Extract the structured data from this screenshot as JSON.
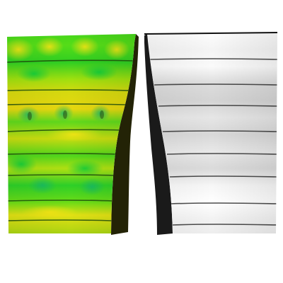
{
  "scene": {
    "background": "#ffffff",
    "panels": [
      {
        "name": "colored-surface-render",
        "colormap": [
          "#11cc22",
          "#44dd11",
          "#99e011",
          "#d8e010",
          "#f0e414",
          "#c8c800"
        ],
        "shadow_color": "#232306",
        "line_color": "#2b5f10",
        "band_count": 9
      },
      {
        "name": "grayscale-surface-render",
        "colormap": [
          "#ffffff",
          "#f0f0f0",
          "#dcdcdc",
          "#c9c9c9"
        ],
        "shadow_color": "#1a1a1a",
        "line_color": "#333333",
        "band_count": 9
      }
    ]
  }
}
